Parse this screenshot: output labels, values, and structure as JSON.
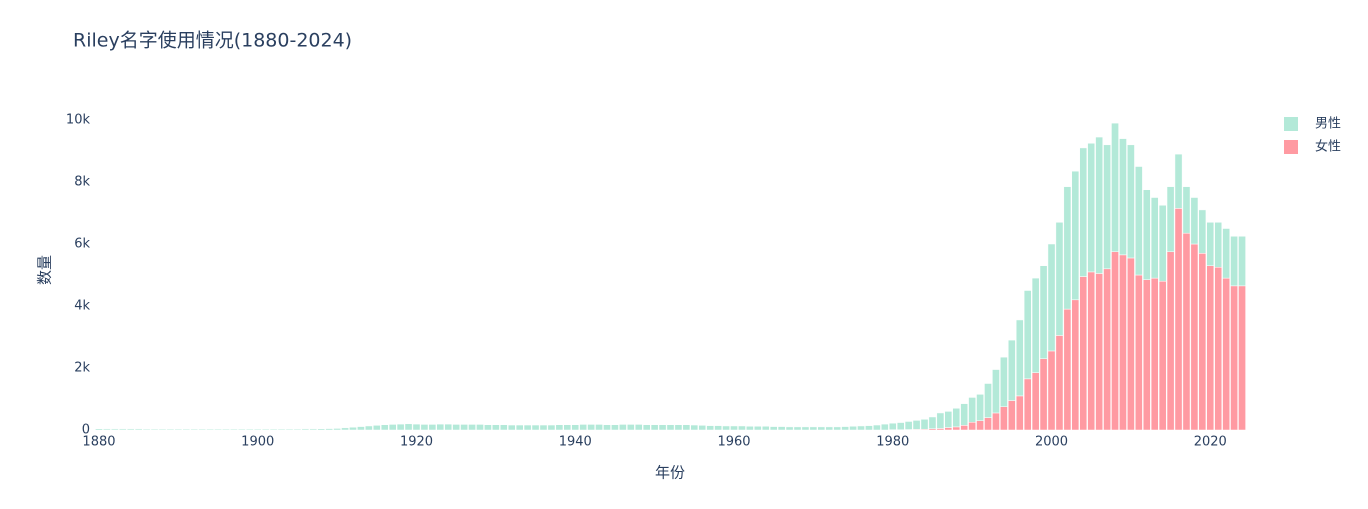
{
  "chart_data": {
    "type": "bar",
    "stacked": true,
    "title": "Riley名字使用情况(1880-2024)",
    "x_label": "年份",
    "y_label": "数量",
    "x": [
      1880,
      1881,
      1882,
      1883,
      1884,
      1885,
      1886,
      1887,
      1888,
      1889,
      1890,
      1891,
      1892,
      1893,
      1894,
      1895,
      1896,
      1897,
      1898,
      1899,
      1900,
      1901,
      1902,
      1903,
      1904,
      1905,
      1906,
      1907,
      1908,
      1909,
      1910,
      1911,
      1912,
      1913,
      1914,
      1915,
      1916,
      1917,
      1918,
      1919,
      1920,
      1921,
      1922,
      1923,
      1924,
      1925,
      1926,
      1927,
      1928,
      1929,
      1930,
      1931,
      1932,
      1933,
      1934,
      1935,
      1936,
      1937,
      1938,
      1939,
      1940,
      1941,
      1942,
      1943,
      1944,
      1945,
      1946,
      1947,
      1948,
      1949,
      1950,
      1951,
      1952,
      1953,
      1954,
      1955,
      1956,
      1957,
      1958,
      1959,
      1960,
      1961,
      1962,
      1963,
      1964,
      1965,
      1966,
      1967,
      1968,
      1969,
      1970,
      1971,
      1972,
      1973,
      1974,
      1975,
      1976,
      1977,
      1978,
      1979,
      1980,
      1981,
      1982,
      1983,
      1984,
      1985,
      1986,
      1987,
      1988,
      1989,
      1990,
      1991,
      1992,
      1993,
      1994,
      1995,
      1996,
      1997,
      1998,
      1999,
      2000,
      2001,
      2002,
      2003,
      2004,
      2005,
      2006,
      2007,
      2008,
      2009,
      2010,
      2011,
      2012,
      2013,
      2014,
      2015,
      2016,
      2017,
      2018,
      2019,
      2020,
      2021,
      2022,
      2023,
      2024
    ],
    "series": [
      {
        "name": "女性",
        "color": "#ff9aa2",
        "values": [
          0,
          0,
          0,
          0,
          0,
          0,
          0,
          0,
          0,
          0,
          0,
          0,
          0,
          0,
          0,
          0,
          0,
          0,
          0,
          0,
          0,
          0,
          0,
          0,
          0,
          0,
          0,
          0,
          0,
          0,
          0,
          0,
          0,
          0,
          0,
          0,
          0,
          0,
          0,
          0,
          0,
          0,
          0,
          0,
          0,
          0,
          0,
          0,
          0,
          0,
          0,
          0,
          0,
          0,
          0,
          0,
          0,
          0,
          0,
          0,
          0,
          0,
          0,
          0,
          0,
          0,
          0,
          0,
          0,
          0,
          0,
          0,
          0,
          0,
          0,
          0,
          0,
          0,
          0,
          0,
          0,
          0,
          0,
          0,
          0,
          0,
          0,
          0,
          0,
          0,
          0,
          0,
          0,
          0,
          0,
          0,
          0,
          0,
          0,
          0,
          10,
          10,
          15,
          20,
          25,
          40,
          50,
          80,
          100,
          150,
          250,
          300,
          400,
          550,
          750,
          950,
          1100,
          1650,
          1850,
          2300,
          2550,
          3050,
          3900,
          4200,
          4950,
          5100,
          5050,
          5200,
          5750,
          5650,
          5550,
          5000,
          4850,
          4900,
          4800,
          5750,
          7150,
          6350,
          6000,
          5700,
          5300,
          5250,
          4900,
          4650,
          4650
        ]
      },
      {
        "name": "男性",
        "color": "#b3e9d8",
        "values": [
          40,
          35,
          35,
          35,
          35,
          35,
          30,
          30,
          30,
          30,
          30,
          30,
          30,
          30,
          30,
          30,
          30,
          30,
          30,
          30,
          30,
          30,
          30,
          30,
          30,
          30,
          35,
          35,
          40,
          45,
          50,
          70,
          90,
          110,
          130,
          150,
          170,
          180,
          190,
          200,
          190,
          180,
          180,
          190,
          190,
          180,
          180,
          180,
          180,
          170,
          170,
          170,
          160,
          160,
          160,
          160,
          160,
          160,
          170,
          170,
          170,
          180,
          180,
          180,
          170,
          170,
          180,
          180,
          180,
          170,
          170,
          170,
          170,
          170,
          170,
          160,
          150,
          140,
          140,
          130,
          130,
          130,
          120,
          120,
          120,
          110,
          110,
          100,
          100,
          100,
          100,
          100,
          100,
          100,
          110,
          120,
          130,
          140,
          160,
          190,
          210,
          230,
          260,
          290,
          320,
          380,
          500,
          520,
          600,
          700,
          800,
          850,
          1100,
          1400,
          1600,
          1950,
          2450,
          2850,
          3050,
          3000,
          3450,
          3650,
          3950,
          4150,
          4150,
          4150,
          4400,
          4000,
          4150,
          3750,
          3650,
          3500,
          2900,
          2600,
          2450,
          2100,
          1750,
          1500,
          1500,
          1400,
          1400,
          1450,
          1600,
          1600,
          1600
        ]
      }
    ],
    "xlim": [
      1879.5,
      2024.5
    ],
    "xticks": [
      1880,
      1900,
      1920,
      1940,
      1960,
      1980,
      2000,
      2020
    ],
    "ylim": [
      0,
      10420
    ],
    "yticks": [
      0,
      {
        "value": 2000,
        "label": "2k"
      },
      {
        "value": 4000,
        "label": "4k"
      },
      {
        "value": 6000,
        "label": "6k"
      },
      {
        "value": 8000,
        "label": "8k"
      },
      {
        "value": 10000,
        "label": "10k"
      }
    ],
    "grid": false,
    "legend": "top-right"
  }
}
